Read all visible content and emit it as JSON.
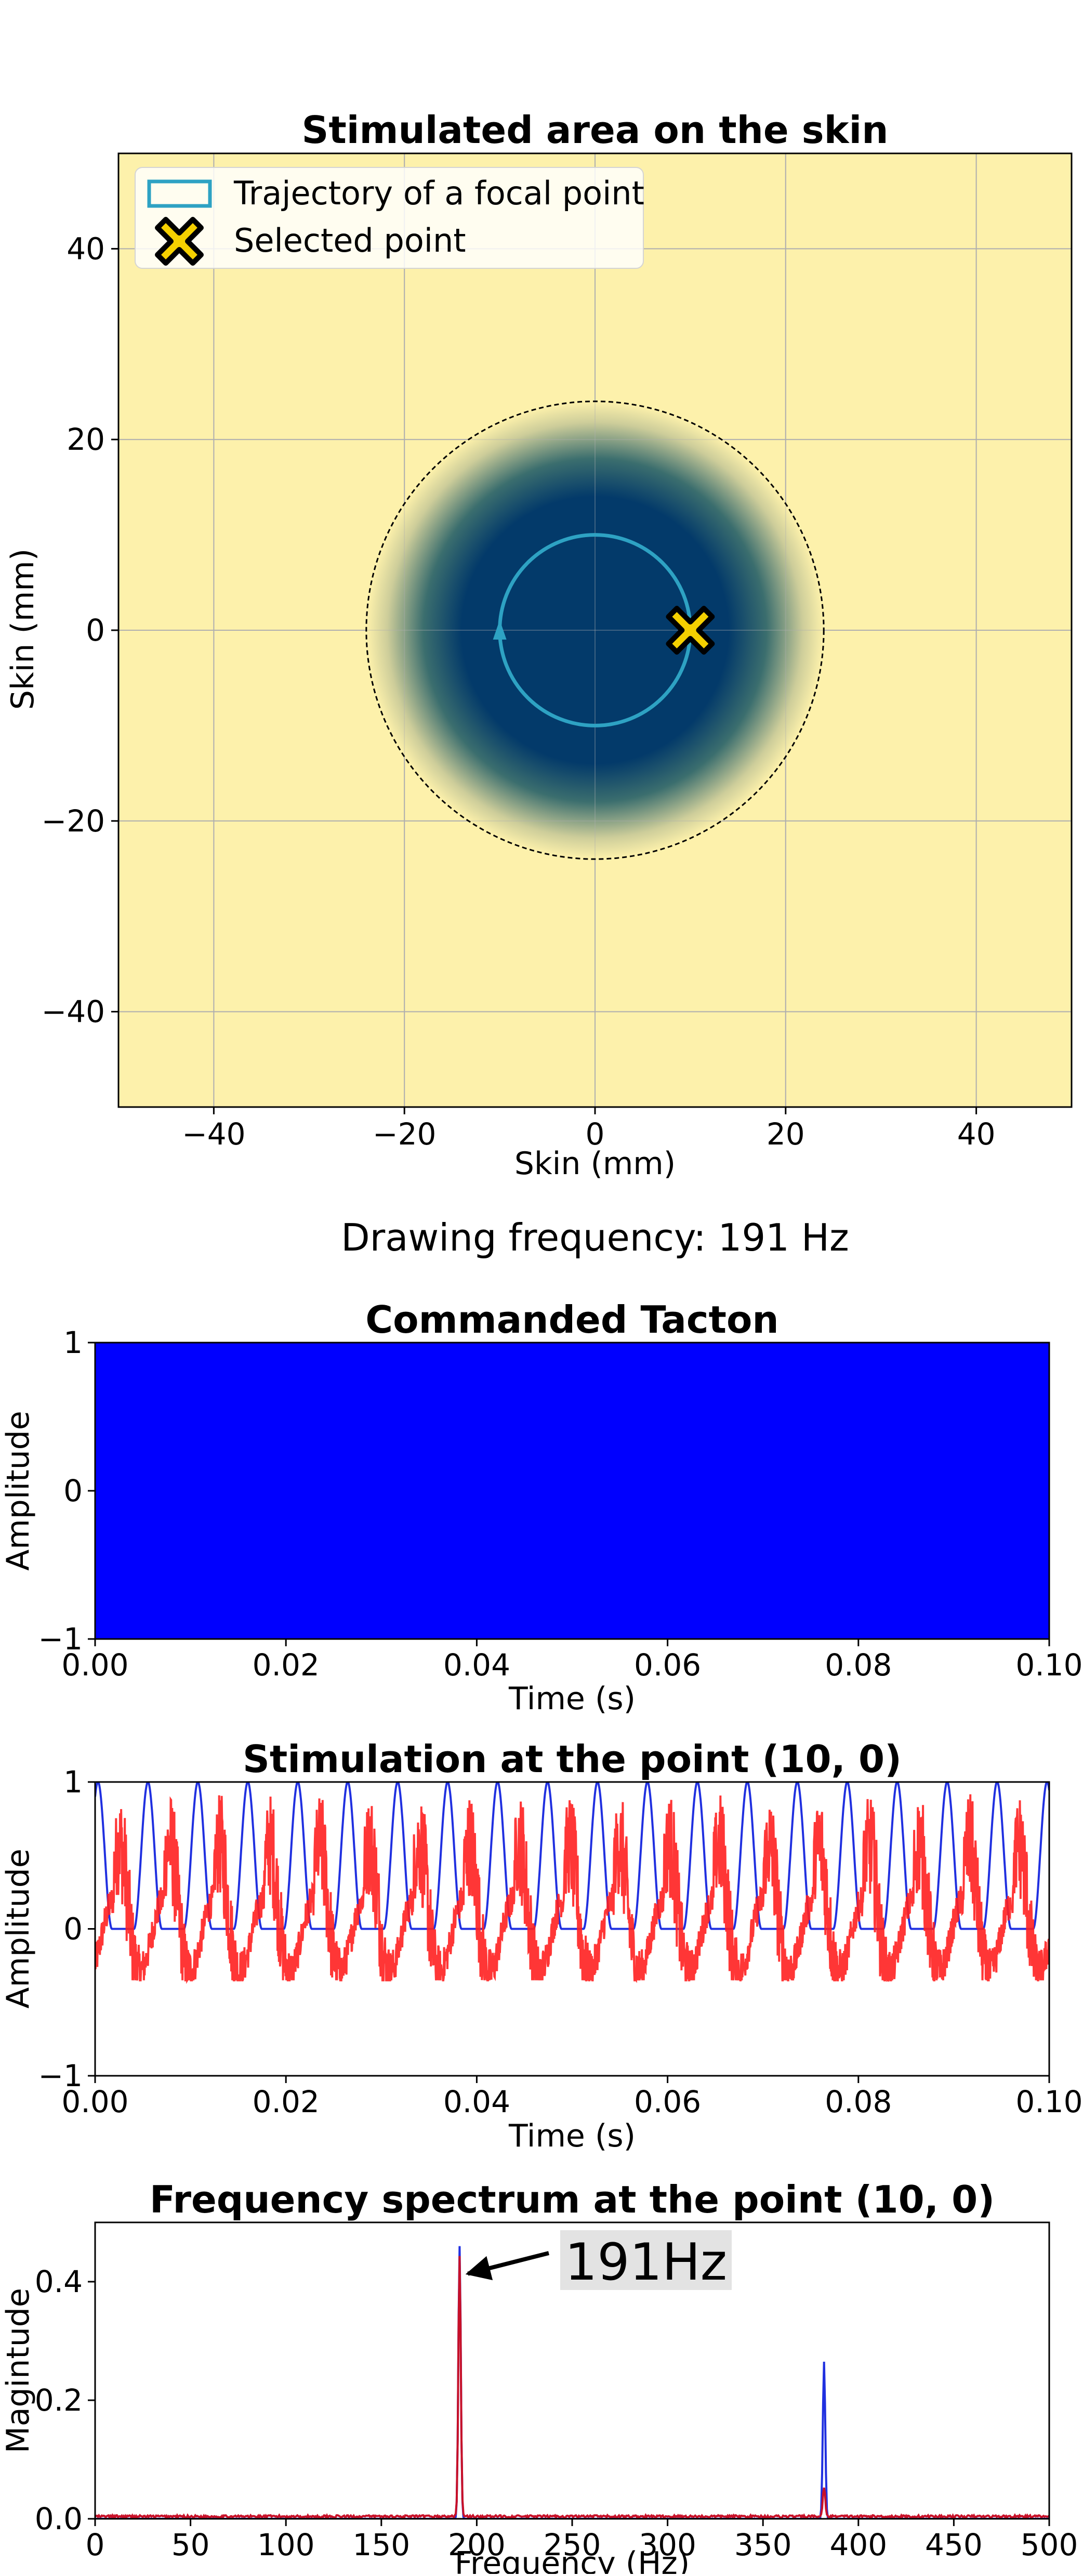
{
  "drawing_frequency_text": "Drawing frequency: 191 Hz",
  "colors": {
    "skin_background": "#fdf1ab",
    "stimulus_center": "#033a6a",
    "trajectory": "#2ea2c3",
    "selected_point_fill": "#f5d000",
    "commanded": "#0000ff",
    "commanded_ref": "#2030e0",
    "measured": "#ff2020",
    "grid": "#b0b0b0"
  },
  "chart_data": [
    {
      "type": "heatmap",
      "title": "Stimulated area on the skin",
      "xlabel": "Skin (mm)",
      "ylabel": "Skin (mm)",
      "xlim": [
        -50,
        50
      ],
      "ylim": [
        -50,
        50
      ],
      "xticks": [
        -40,
        -20,
        0,
        20,
        40
      ],
      "yticks": [
        -40,
        -20,
        0,
        20,
        40
      ],
      "xtick_labels": [
        "−40",
        "−20",
        "0",
        "20",
        "40"
      ],
      "ytick_labels": [
        "−40",
        "−20",
        "0",
        "20",
        "40"
      ],
      "grid": true,
      "legend_position": "top-left",
      "legend": [
        "Trajectory of a focal point",
        "Selected point"
      ],
      "stimulated_area": {
        "center": [
          0,
          0
        ],
        "outer_radius": 24,
        "core_radius": 14
      },
      "trajectory": {
        "center": [
          0,
          0
        ],
        "radius": 10,
        "direction_marker_at": [
          -10,
          0
        ]
      },
      "selected_point": [
        10,
        0
      ]
    },
    {
      "type": "line",
      "title": "Commanded Tacton",
      "xlabel": "Time (s)",
      "ylabel": "Amplitude",
      "xlim": [
        0,
        0.1
      ],
      "ylim": [
        -1,
        1
      ],
      "xticks": [
        0,
        0.02,
        0.04,
        0.06,
        0.08,
        0.1
      ],
      "yticks": [
        -1,
        0,
        1
      ],
      "xtick_labels": [
        "0.00",
        "0.02",
        "0.04",
        "0.06",
        "0.08",
        "0.10"
      ],
      "ytick_labels": [
        "−1",
        "0",
        "1"
      ],
      "grid": false,
      "series": [
        {
          "color": "#0000ff",
          "shape": "carrier oscillating between -1 and 1 too densely to resolve; fills the whole axes"
        }
      ]
    },
    {
      "type": "line",
      "title": "Stimulation at the point (10, 0)",
      "xlabel": "Time (s)",
      "ylabel": "Amplitude",
      "xlim": [
        0,
        0.1
      ],
      "ylim": [
        -1,
        1
      ],
      "xticks": [
        0,
        0.02,
        0.04,
        0.06,
        0.08,
        0.1
      ],
      "yticks": [
        -1,
        0,
        1
      ],
      "xtick_labels": [
        "0.00",
        "0.02",
        "0.04",
        "0.06",
        "0.08",
        "0.10"
      ],
      "ytick_labels": [
        "−1",
        "0",
        "1"
      ],
      "grid": false,
      "series": [
        {
          "color": "#2030e0",
          "shape": "periodic pulse between 0 and 1",
          "frequency_hz": 191,
          "pulse_peak_times": [
            0.0003,
            0.0055,
            0.0107,
            0.016,
            0.0212,
            0.0264,
            0.0317,
            0.0369,
            0.0421,
            0.0473,
            0.0526,
            0.0578,
            0.063,
            0.0682,
            0.0735,
            0.0787,
            0.0839,
            0.0892,
            0.0944,
            0.0996
          ]
        },
        {
          "color": "#ff2020",
          "shape": "noisy response",
          "frequency_hz": 191,
          "approx_min": -0.35,
          "approx_max": 1.0,
          "peak_offset_s": 0.0017
        }
      ]
    },
    {
      "type": "line",
      "title": "Frequency spectrum at the point (10, 0)",
      "xlabel": "Frequency (Hz)",
      "ylabel": "Magintude",
      "xlim": [
        0,
        500
      ],
      "ylim": [
        0,
        0.5
      ],
      "xticks": [
        0,
        50,
        100,
        150,
        200,
        250,
        300,
        350,
        400,
        450,
        500
      ],
      "yticks": [
        0,
        0.2,
        0.4
      ],
      "xtick_labels": [
        "0",
        "50",
        "100",
        "150",
        "200",
        "250",
        "300",
        "350",
        "400",
        "450",
        "500"
      ],
      "ytick_labels": [
        "0.0",
        "0.2",
        "0.4"
      ],
      "grid": false,
      "annotation": {
        "text": "191Hz",
        "points_to": [
          191,
          0.41
        ]
      },
      "series": [
        {
          "color": "#2030e0",
          "peaks": [
            {
              "x": 191,
              "y": 0.46
            },
            {
              "x": 382,
              "y": 0.265
            }
          ],
          "baseline": 0.0
        },
        {
          "color": "#c81028",
          "peaks": [
            {
              "x": 191,
              "y": 0.44
            },
            {
              "x": 382,
              "y": 0.05
            }
          ],
          "baseline": 0.004
        }
      ]
    }
  ]
}
